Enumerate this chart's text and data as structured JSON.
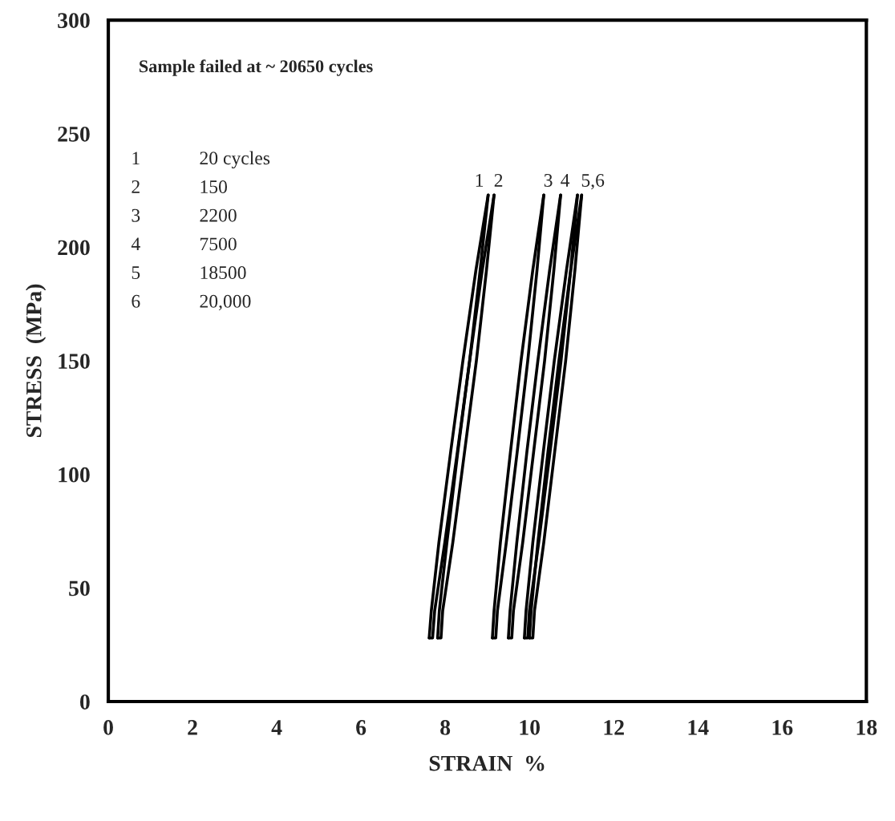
{
  "chart_data": {
    "type": "line",
    "xlabel": "STRAIN  %",
    "ylabel": "STRESS  (MPa)",
    "xlim": [
      0,
      18
    ],
    "ylim": [
      0,
      300
    ],
    "xticks": [
      0,
      2,
      4,
      6,
      8,
      10,
      12,
      14,
      16,
      18
    ],
    "yticks": [
      0,
      50,
      100,
      150,
      200,
      250,
      300
    ],
    "grid": false,
    "legend": false,
    "marker": "none",
    "line_style": "solid",
    "series": [
      {
        "color": "#000000",
        "x": [
          7.62,
          7.67,
          7.85,
          8.13,
          8.42,
          8.73,
          9.02
        ],
        "values": [
          28,
          40,
          70,
          110,
          150,
          190,
          223
        ]
      },
      {
        "color": "#000000",
        "x": [
          7.62,
          7.7,
          7.75,
          7.99,
          8.29,
          8.58,
          8.83,
          9.02
        ],
        "values": [
          28,
          28,
          40,
          70,
          110,
          150,
          190,
          223
        ]
      },
      {
        "color": "#000000",
        "x": [
          7.82,
          7.86,
          8.04,
          8.3,
          8.58,
          8.88,
          9.16
        ],
        "values": [
          28,
          40,
          70,
          110,
          150,
          190,
          223
        ]
      },
      {
        "color": "#000000",
        "x": [
          7.82,
          7.9,
          7.94,
          8.18,
          8.46,
          8.74,
          8.98,
          9.16
        ],
        "values": [
          28,
          28,
          40,
          70,
          110,
          150,
          190,
          223
        ]
      },
      {
        "color": "#000000",
        "x": [
          9.12,
          9.16,
          9.31,
          9.55,
          9.8,
          10.08,
          10.34
        ],
        "values": [
          28,
          40,
          70,
          110,
          150,
          190,
          223
        ]
      },
      {
        "color": "#000000",
        "x": [
          9.12,
          9.2,
          9.24,
          9.45,
          9.71,
          9.96,
          10.18,
          10.34
        ],
        "values": [
          28,
          28,
          40,
          70,
          110,
          150,
          190,
          223
        ]
      },
      {
        "color": "#000000",
        "x": [
          9.5,
          9.54,
          9.7,
          9.94,
          10.2,
          10.48,
          10.74
        ],
        "values": [
          28,
          40,
          70,
          110,
          150,
          190,
          223
        ]
      },
      {
        "color": "#000000",
        "x": [
          9.5,
          9.58,
          9.62,
          9.84,
          10.1,
          10.36,
          10.58,
          10.74
        ],
        "values": [
          28,
          28,
          40,
          70,
          110,
          150,
          190,
          223
        ]
      },
      {
        "color": "#000000",
        "x": [
          9.88,
          9.92,
          10.08,
          10.33,
          10.59,
          10.88,
          11.14
        ],
        "values": [
          28,
          40,
          70,
          110,
          150,
          190,
          223
        ]
      },
      {
        "color": "#000000",
        "x": [
          9.88,
          9.96,
          10.0,
          10.22,
          10.49,
          10.75,
          10.98,
          11.14
        ],
        "values": [
          28,
          28,
          40,
          70,
          110,
          150,
          190,
          223
        ]
      },
      {
        "color": "#000000",
        "x": [
          10.0,
          10.04,
          10.2,
          10.44,
          10.7,
          10.98,
          11.24
        ],
        "values": [
          28,
          40,
          70,
          110,
          150,
          190,
          223
        ]
      },
      {
        "color": "#000000",
        "x": [
          10.0,
          10.08,
          10.12,
          10.34,
          10.6,
          10.86,
          11.08,
          11.24
        ],
        "values": [
          28,
          28,
          40,
          70,
          110,
          150,
          190,
          223
        ]
      }
    ],
    "annotations": [
      "Sample failed at ~ 20650 cycles",
      "1",
      "20 cycles",
      "2",
      "150",
      "3",
      "2200",
      "4",
      "7500",
      "5",
      "18500",
      "6",
      "20,000",
      {
        "text": "1",
        "x": 9.02,
        "y": 223
      },
      {
        "text": "2",
        "x": 9.16,
        "y": 223
      },
      {
        "text": "3",
        "x": 10.34,
        "y": 223
      },
      {
        "text": "4",
        "x": 10.74,
        "y": 223
      },
      {
        "text": "5,6",
        "x": 11.24,
        "y": 223
      }
    ]
  }
}
